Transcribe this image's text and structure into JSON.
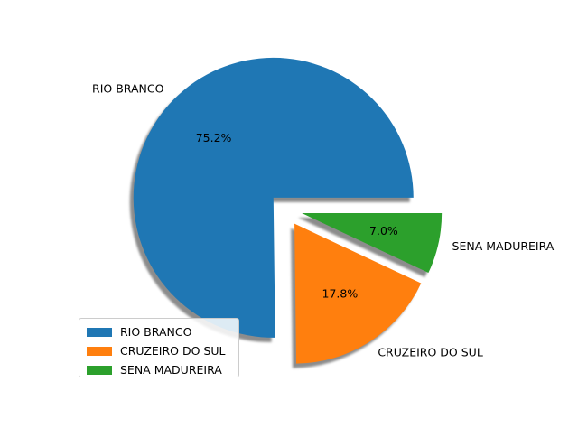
{
  "chart_data": {
    "type": "pie",
    "title": "",
    "labels": [
      "RIO BRANCO",
      "CRUZEIRO DO SUL",
      "SENA MADUREIRA"
    ],
    "percent_labels": [
      "75.2%",
      "17.8%",
      "7.0%"
    ],
    "values": [
      75.2,
      17.8,
      7.0
    ],
    "colors": [
      "#1f77b4",
      "#ff7f0e",
      "#2ca02c"
    ],
    "exploded": [
      true,
      true,
      true
    ],
    "shadow": true,
    "start_angle_deg": 0,
    "legend": {
      "placement": "lower-left",
      "entries": [
        "RIO BRANCO",
        "CRUZEIRO DO SUL",
        "SENA MADUREIRA"
      ]
    }
  }
}
